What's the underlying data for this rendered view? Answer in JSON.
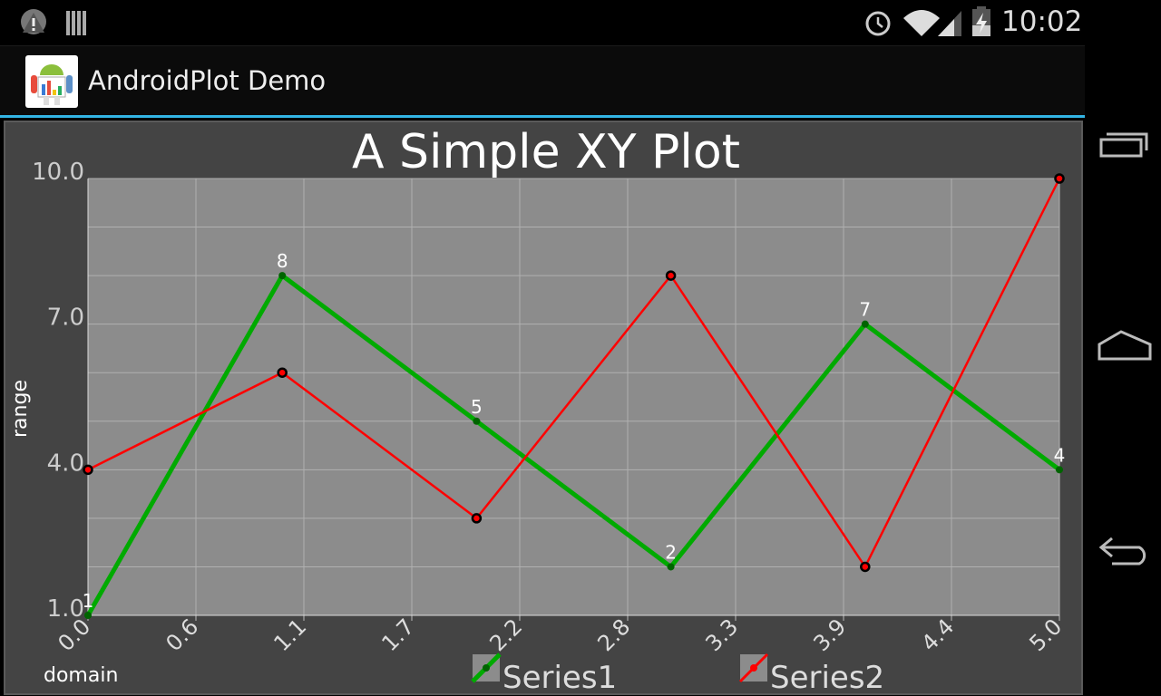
{
  "status_bar": {
    "time": "10:02",
    "left_icons": [
      "warning-icon",
      "barcode-icon"
    ],
    "right_icons": [
      "alarm-icon",
      "wifi-icon",
      "signal-icon",
      "battery-charging-icon"
    ]
  },
  "action_bar": {
    "title": "AndroidPlot Demo",
    "icon": "androidplot-app-icon"
  },
  "nav_bar": {
    "icons": [
      "recent-apps-icon",
      "home-icon",
      "back-icon"
    ]
  },
  "colors": {
    "accent": "#33b5e5",
    "panel": "#444444",
    "plot_bg": "#8c8c8c",
    "series1": "#00aa00",
    "series2": "#ff0000"
  },
  "chart_data": {
    "type": "line",
    "title": "A Simple XY Plot",
    "xlabel": "domain",
    "ylabel": "range",
    "xlim": [
      0,
      5
    ],
    "ylim": [
      1,
      10
    ],
    "x": [
      0,
      1,
      2,
      3,
      4,
      5
    ],
    "x_tick_labels": [
      "0.0",
      "0.6",
      "1.1",
      "1.7",
      "2.2",
      "2.8",
      "3.3",
      "3.9",
      "4.4",
      "5.0"
    ],
    "y_tick_labels": [
      "10.0",
      "7.0",
      "4.0",
      "1.0"
    ],
    "grid": true,
    "legend": "bottom",
    "series": [
      {
        "name": "Series1",
        "values": [
          1,
          8,
          5,
          2,
          7,
          4
        ],
        "color": "#00aa00",
        "point_labels": true
      },
      {
        "name": "Series2",
        "values": [
          4,
          6,
          3,
          8,
          2,
          10
        ],
        "color": "#ff0000",
        "point_labels": false
      }
    ]
  }
}
